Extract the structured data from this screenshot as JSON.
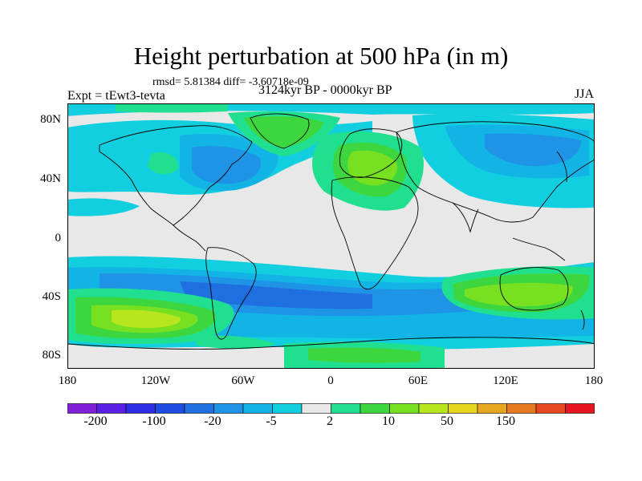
{
  "title": "Height perturbation at 500 hPa (in m)",
  "stats": "rmsd= 5.81384 diff= -3.60718e-09",
  "expt": "Expt = tEwt3-tevta",
  "period": "3124kyr BP - 0000kyr BP",
  "season": "JJA",
  "axes": {
    "y_ticks": [
      "80N",
      "40N",
      "0",
      "40S",
      "80S"
    ],
    "x_ticks": [
      "180",
      "120W",
      "60W",
      "0",
      "60E",
      "120E",
      "180"
    ]
  },
  "colorbar": {
    "labels": [
      "-200",
      "-100",
      "-20",
      "-5",
      "2",
      "10",
      "50",
      "150"
    ],
    "colors": [
      "#7F1FD6",
      "#5C1FE6",
      "#2E2EE6",
      "#1F4BE0",
      "#1F6FE0",
      "#1F93E6",
      "#12B4E6",
      "#12CFE0",
      "#E8E8E8",
      "#20E090",
      "#3ED63E",
      "#77E020",
      "#B8E61E",
      "#E6D61F",
      "#E6A61F",
      "#E6781F",
      "#E6481F",
      "#E6141F"
    ]
  },
  "map_colors": {
    "ocean_background": "#E8E8E8",
    "neg_weak": "#12CFE0",
    "neg_mid": "#12B4E6",
    "neg_strong": "#1F93E6",
    "neg_stronger": "#1F6FE0",
    "pos_weak": "#20E090",
    "pos_mid": "#3ED63E",
    "pos_strong": "#77E020",
    "pos_stronger": "#B8E61E",
    "pos_strongest": "#E6D61F",
    "coast": "#000000"
  }
}
